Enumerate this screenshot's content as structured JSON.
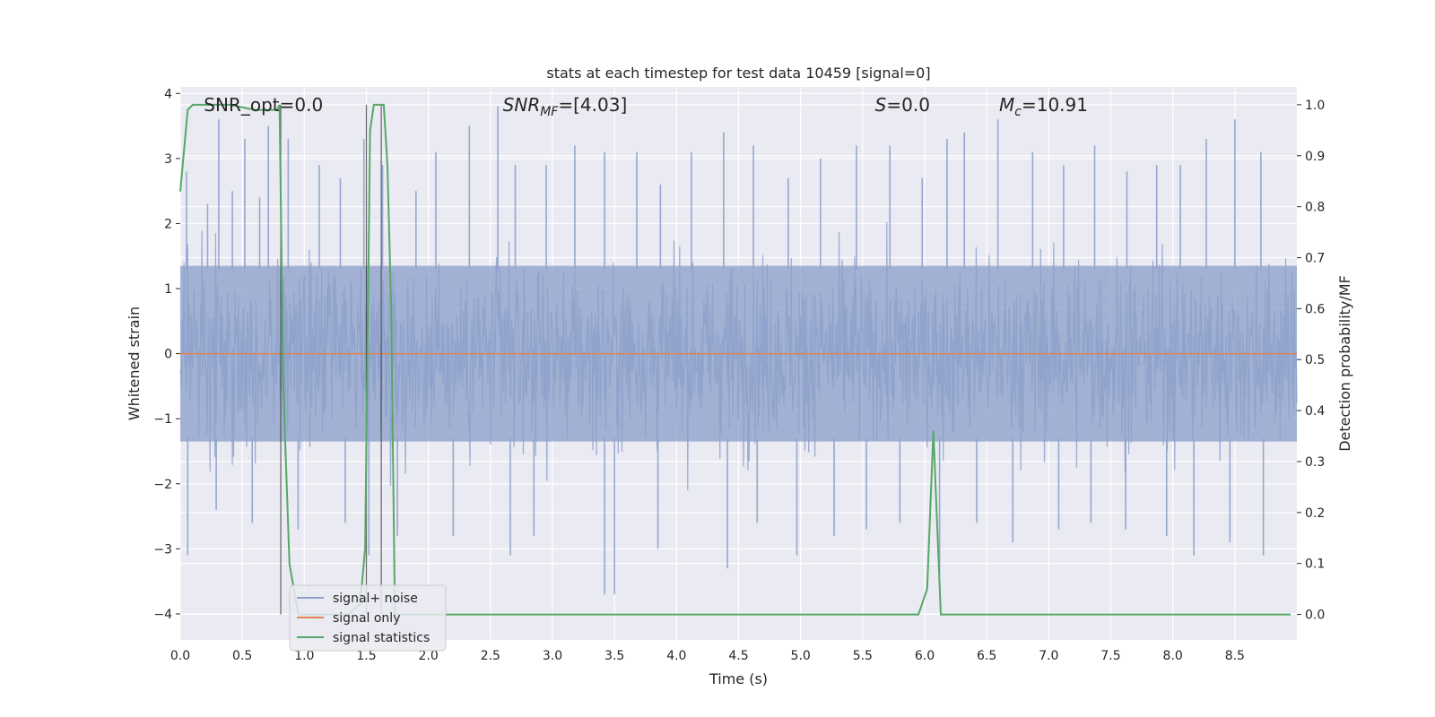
{
  "chart_data": {
    "type": "line",
    "title": "stats at each timestep for test data 10459 [signal=0]",
    "xlabel": "Time (s)",
    "ylabel": "Whitened strain",
    "y2label": "Detection probability/MF",
    "xlim": [
      0,
      9.0
    ],
    "ylim": [
      -4.4,
      4.1
    ],
    "y2lim": [
      -0.05,
      1.035
    ],
    "x_ticks": [
      0.0,
      0.5,
      1.0,
      1.5,
      2.0,
      2.5,
      3.0,
      3.5,
      4.0,
      4.5,
      5.0,
      5.5,
      6.0,
      6.5,
      7.0,
      7.5,
      8.0,
      8.5
    ],
    "x_tick_labels": [
      "0.0",
      "0.5",
      "1.0",
      "1.5",
      "2.0",
      "2.5",
      "3.0",
      "3.5",
      "4.0",
      "4.5",
      "5.0",
      "5.5",
      "6.0",
      "6.5",
      "7.0",
      "7.5",
      "8.0",
      "8.5"
    ],
    "y_ticks": [
      4,
      3,
      2,
      1,
      0,
      -1,
      -2,
      -3,
      -4
    ],
    "y_tick_labels": [
      "4",
      "3",
      "2",
      "1",
      "0",
      "−1",
      "−2",
      "−3",
      "−4"
    ],
    "y2_ticks": [
      1.0,
      0.9,
      0.8,
      0.7,
      0.6,
      0.5,
      0.4,
      0.3,
      0.2,
      0.1,
      0.0
    ],
    "y2_tick_labels": [
      "1.0",
      "0.9",
      "0.8",
      "0.7",
      "0.6",
      "0.5",
      "0.4",
      "0.3",
      "0.2",
      "0.1",
      "0.0"
    ],
    "grid": true,
    "legend_position": "lower-left",
    "annotations": [
      {
        "id": "snr-opt",
        "x": 0.19,
        "text": "SNR_opt=0.0"
      },
      {
        "id": "snr-mf",
        "x": 2.6,
        "text": "SNR_MF=[4.03]"
      },
      {
        "id": "s-stat",
        "x": 5.6,
        "text": "S=0.0"
      },
      {
        "id": "mc",
        "x": 6.6,
        "text": "M_c=10.91"
      }
    ],
    "vertical_lines": [
      0.81,
      1.5,
      1.62
    ],
    "series": [
      {
        "name": "signal+ noise",
        "color": "#8da0cb",
        "axis": "left",
        "style": "noise",
        "envelope_peak_times": [
          0.05,
          0.22,
          0.31,
          0.42,
          0.52,
          0.64,
          0.71,
          0.87,
          1.12,
          1.29,
          1.48,
          1.63,
          1.9,
          2.06,
          2.33,
          2.56,
          2.7,
          2.95,
          3.18,
          3.42,
          3.68,
          3.87,
          4.12,
          4.38,
          4.62,
          4.9,
          5.16,
          5.45,
          5.72,
          5.98,
          6.18,
          6.32,
          6.59,
          6.87,
          7.12,
          7.37,
          7.63,
          7.87,
          8.06,
          8.27,
          8.5,
          8.71
        ],
        "envelope_peak_values": [
          2.8,
          2.3,
          3.6,
          2.5,
          3.3,
          2.4,
          3.5,
          3.3,
          2.9,
          2.7,
          3.3,
          2.9,
          2.5,
          3.1,
          3.5,
          3.8,
          2.9,
          2.9,
          3.2,
          3.1,
          3.1,
          2.6,
          3.1,
          3.4,
          3.2,
          2.7,
          3.0,
          3.2,
          3.2,
          2.7,
          3.3,
          3.4,
          3.6,
          3.1,
          2.9,
          3.2,
          2.8,
          2.9,
          2.9,
          3.3,
          3.6,
          3.1
        ],
        "envelope_trough_times": [
          0.06,
          0.29,
          0.58,
          0.95,
          1.33,
          1.52,
          1.75,
          2.2,
          2.66,
          2.85,
          3.42,
          3.5,
          3.85,
          4.41,
          4.65,
          4.97,
          5.27,
          5.53,
          5.8,
          6.12,
          6.42,
          6.71,
          7.08,
          7.34,
          7.62,
          7.95,
          8.17,
          8.46,
          8.73
        ],
        "envelope_trough_values": [
          -3.1,
          -2.4,
          -2.6,
          -2.7,
          -2.6,
          -3.1,
          -2.8,
          -2.8,
          -3.1,
          -2.8,
          -3.7,
          -3.7,
          -3.0,
          -3.3,
          -2.6,
          -3.1,
          -2.8,
          -2.7,
          -2.6,
          -3.4,
          -2.6,
          -2.9,
          -2.7,
          -2.6,
          -2.7,
          -2.8,
          -3.1,
          -2.9,
          -3.1
        ]
      },
      {
        "name": "signal only",
        "color": "#dd8452",
        "axis": "left",
        "x": [
          0.0,
          9.0
        ],
        "y": [
          0.0,
          0.0
        ]
      },
      {
        "name": "signal statistics",
        "color": "#55a868",
        "axis": "right",
        "x": [
          0.0,
          0.06,
          0.1,
          0.2,
          0.4,
          0.6,
          0.78,
          0.8,
          0.83,
          0.88,
          0.95,
          1.05,
          1.2,
          1.35,
          1.45,
          1.49,
          1.53,
          1.56,
          1.64,
          1.67,
          1.7,
          1.73,
          1.8,
          2.0,
          3.0,
          4.0,
          5.0,
          5.95,
          6.02,
          6.07,
          6.13,
          6.5,
          7.0,
          8.0,
          8.95
        ],
        "y": [
          0.83,
          0.99,
          1.0,
          1.0,
          1.0,
          0.99,
          0.99,
          1.0,
          0.45,
          0.1,
          0.0,
          0.0,
          0.0,
          0.0,
          0.02,
          0.13,
          0.95,
          1.0,
          1.0,
          0.88,
          0.6,
          0.0,
          0.0,
          0.0,
          0.0,
          0.0,
          0.0,
          0.0,
          0.05,
          0.36,
          0.0,
          0.0,
          0.0,
          0.0,
          0.0
        ]
      }
    ]
  }
}
